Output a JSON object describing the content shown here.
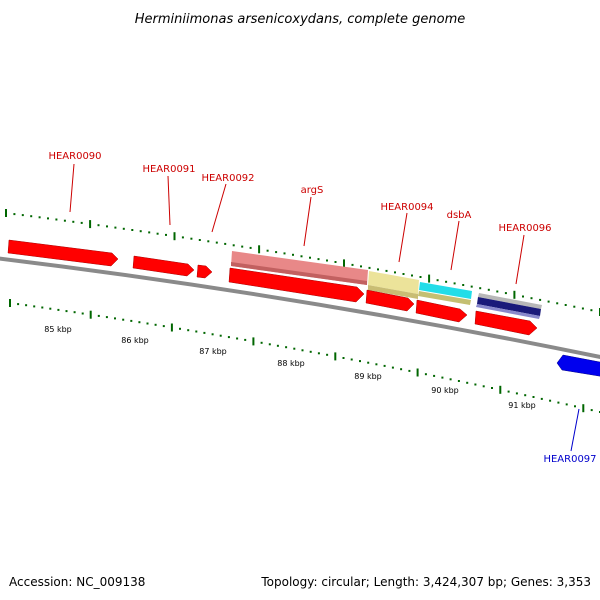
{
  "title": "Herminiimonas arsenicoxydans, complete genome",
  "footer": {
    "accession": "Accession: NC_009138",
    "summary": "Topology: circular; Length: 3,424,307 bp; Genes: 3,353"
  },
  "colors": {
    "backbone": "#8a8a8a",
    "forward_gene": "#ff0000",
    "reverse_gene": "#0000ee",
    "label_forward": "#cc0000",
    "label_reverse": "#0000cc",
    "tick": "#006600"
  },
  "scale_labels": [
    "85 kbp",
    "86 kbp",
    "87 kbp",
    "88 kbp",
    "89 kbp",
    "90 kbp",
    "91 kbp"
  ],
  "genes": [
    {
      "name": "HEAR0090",
      "strand": "+"
    },
    {
      "name": "HEAR0091",
      "strand": "+"
    },
    {
      "name": "HEAR0092",
      "strand": "+"
    },
    {
      "name": "argS",
      "strand": "+"
    },
    {
      "name": "HEAR0094",
      "strand": "+"
    },
    {
      "name": "dsbA",
      "strand": "+"
    },
    {
      "name": "HEAR0096",
      "strand": "+"
    },
    {
      "name": "HEAR0097",
      "strand": "-"
    }
  ]
}
